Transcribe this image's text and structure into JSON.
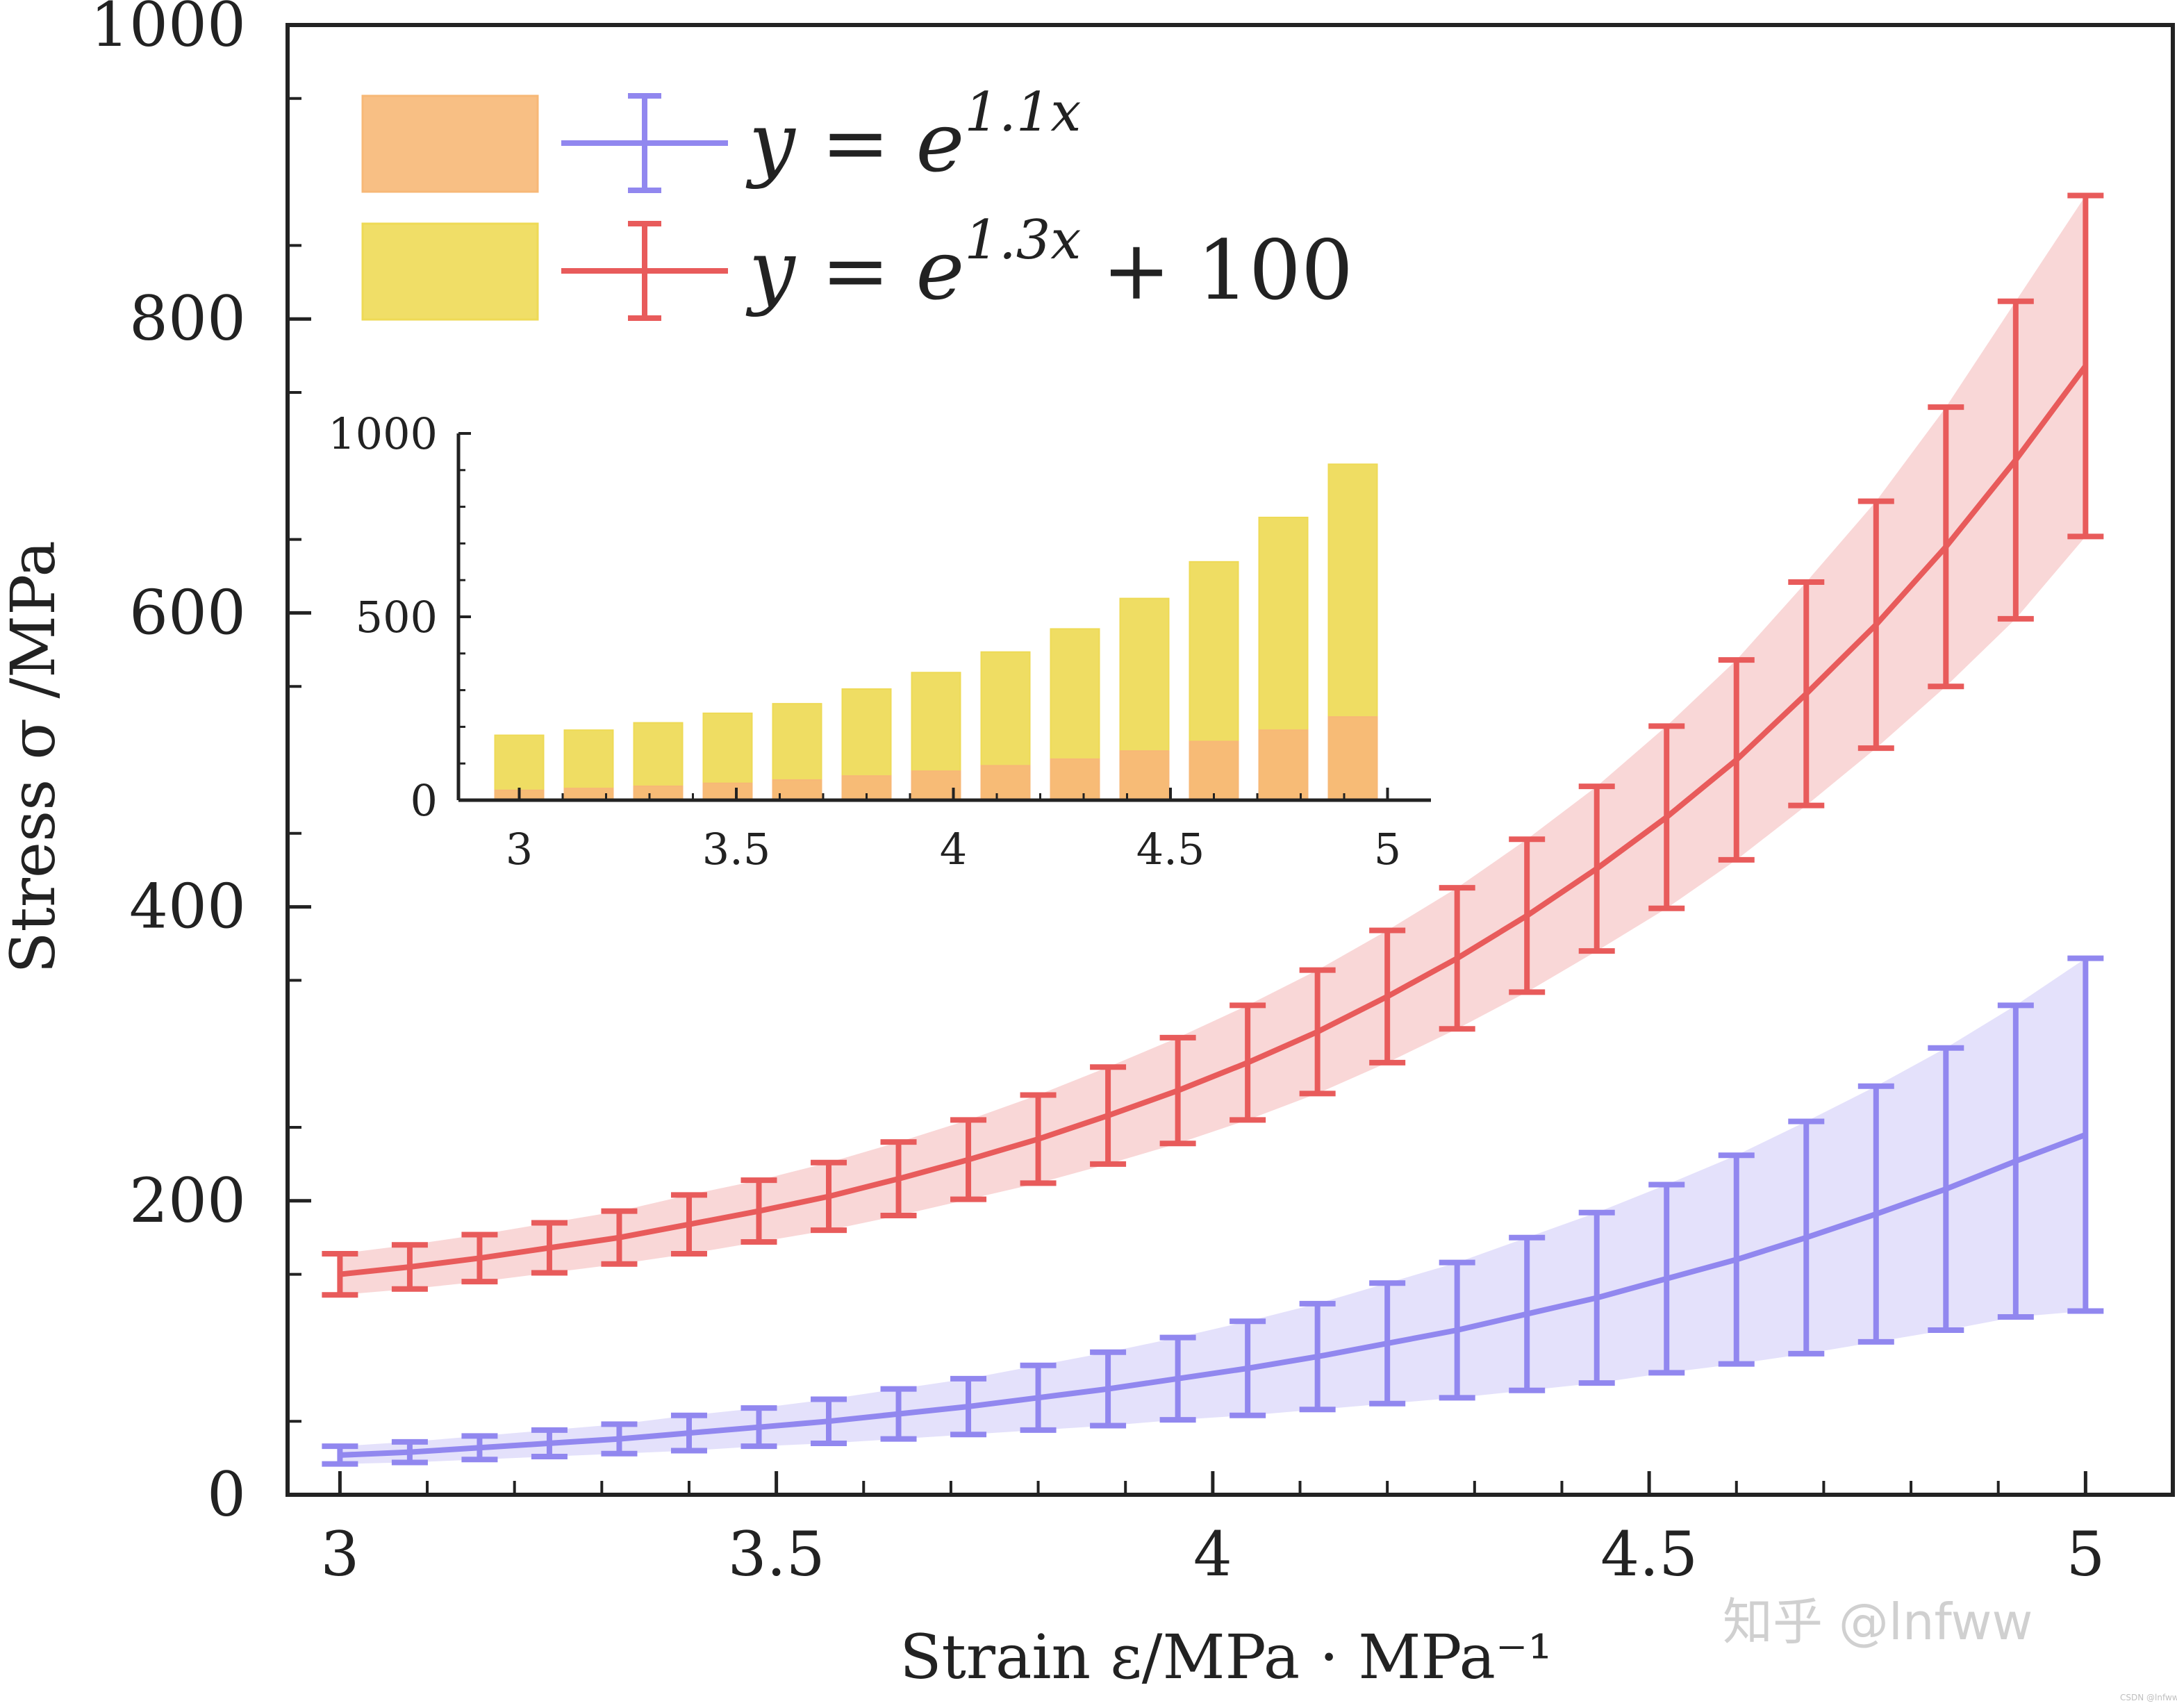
{
  "chart_data": {
    "type": "line",
    "xlabel": "Strain ε/MPa · MPa⁻¹",
    "ylabel": "Stress σ /MPa",
    "xlim": [
      2.94,
      5.1
    ],
    "ylim": [
      0,
      1000
    ],
    "x_ticks": [
      "3",
      "3.5",
      "4",
      "4.5",
      "5"
    ],
    "y_ticks": [
      "0",
      "200",
      "400",
      "600",
      "800",
      "1000"
    ],
    "x_tick_values": [
      3,
      3.5,
      4,
      4.5,
      5
    ],
    "y_tick_values": [
      0,
      200,
      400,
      600,
      800,
      1000
    ],
    "grid": false,
    "legend_position": "top-left",
    "series": [
      {
        "name": "y = e^{1.1x}",
        "label_main": "y = e",
        "label_sup": "1.1x",
        "label_tail": "",
        "color": "#9187ef",
        "band_color": "#e4e1fb",
        "x": [
          3.0,
          3.08,
          3.16,
          3.24,
          3.32,
          3.4,
          3.48,
          3.56,
          3.64,
          3.72,
          3.8,
          3.88,
          3.96,
          4.04,
          4.12,
          4.2,
          4.28,
          4.36,
          4.44,
          4.52,
          4.6,
          4.68,
          4.76,
          4.84,
          4.92,
          5.0
        ],
        "y": [
          27,
          29,
          32,
          35,
          38,
          42,
          46,
          50,
          55,
          60,
          66,
          72,
          79,
          86,
          94,
          103,
          112,
          123,
          134,
          147,
          160,
          175,
          191,
          208,
          227,
          245
        ],
        "error": [
          6,
          7,
          8,
          9,
          10,
          12,
          13,
          15,
          17,
          19,
          22,
          25,
          28,
          32,
          36,
          41,
          46,
          52,
          58,
          64,
          71,
          79,
          87,
          96,
          106,
          120
        ]
      },
      {
        "name": "y = e^{1.3x} + 100",
        "label_main": "y = e",
        "label_sup": "1.3x",
        "label_tail": "+ 100",
        "color": "#e85b5b",
        "band_color": "#f9d7d7",
        "x": [
          3.0,
          3.08,
          3.16,
          3.24,
          3.32,
          3.4,
          3.48,
          3.56,
          3.64,
          3.72,
          3.8,
          3.88,
          3.96,
          4.04,
          4.12,
          4.2,
          4.28,
          4.36,
          4.44,
          4.52,
          4.6,
          4.68,
          4.76,
          4.84,
          4.92,
          5.0
        ],
        "y": [
          150,
          155,
          161,
          168,
          175,
          184,
          193,
          203,
          215,
          228,
          242,
          258,
          275,
          294,
          315,
          339,
          365,
          394,
          426,
          461,
          500,
          545,
          592,
          645,
          704,
          768
        ],
        "error": [
          14,
          15,
          16,
          17,
          18,
          20,
          21,
          23,
          25,
          27,
          30,
          33,
          36,
          39,
          42,
          45,
          48,
          52,
          56,
          62,
          68,
          76,
          84,
          95,
          108,
          116
        ]
      }
    ],
    "inset": {
      "type": "bar",
      "xlim": [
        2.86,
        5.1
      ],
      "ylim": [
        0,
        1000
      ],
      "x_ticks": [
        "3",
        "3.5",
        "4",
        "4.5",
        "5"
      ],
      "x_tick_values": [
        3,
        3.5,
        4,
        4.5,
        5
      ],
      "y_ticks": [
        "0",
        "500",
        "1000"
      ],
      "y_tick_values": [
        0,
        500,
        1000
      ],
      "x": [
        3.0,
        3.16,
        3.32,
        3.48,
        3.64,
        3.8,
        3.96,
        4.12,
        4.28,
        4.44,
        4.6,
        4.76,
        4.92
      ],
      "series": [
        {
          "color": "#eeda56",
          "values": [
            177,
            191,
            211,
            237,
            263,
            303,
            348,
            404,
            467,
            550,
            650,
            771,
            916
          ]
        },
        {
          "color": "#f7b877",
          "values": [
            27,
            32,
            38,
            46,
            55,
            66,
            79,
            94,
            112,
            134,
            160,
            191,
            227
          ]
        }
      ]
    }
  },
  "watermark": {
    "text": "知乎 @lnfww",
    "small_text": "CSDN @lnfww"
  }
}
